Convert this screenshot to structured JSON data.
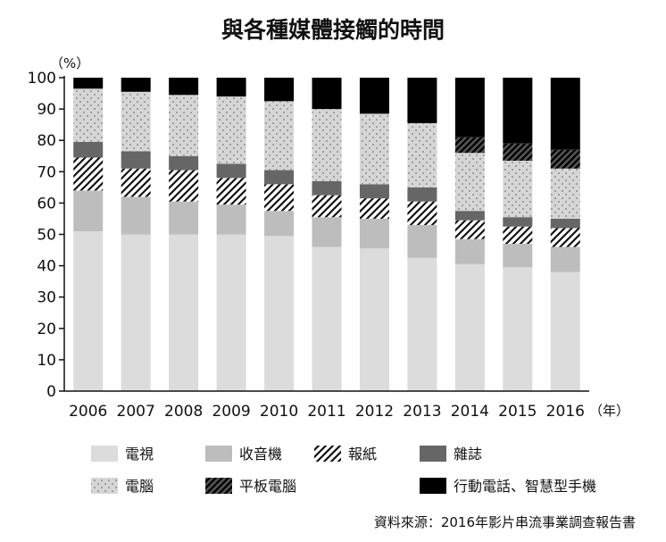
{
  "chart_data": {
    "type": "bar",
    "stacked": true,
    "normalized": true,
    "title": "與各種媒體接觸的時間",
    "y_unit": "（%）",
    "x_unit": "（年）",
    "ylim": [
      0,
      100
    ],
    "yticks": [
      0,
      10,
      20,
      30,
      40,
      50,
      60,
      70,
      80,
      90,
      100
    ],
    "grid": false,
    "legend_position": "bottom",
    "categories": [
      "2006",
      "2007",
      "2008",
      "2009",
      "2010",
      "2011",
      "2012",
      "2013",
      "2014",
      "2015",
      "2016"
    ],
    "series": [
      {
        "name": "電視",
        "key": "tv",
        "values": [
          51,
          50,
          50,
          50,
          49.5,
          46,
          45.5,
          42.5,
          40.5,
          39.5,
          38
        ]
      },
      {
        "name": "收音機",
        "key": "radio",
        "values": [
          13,
          12,
          10.5,
          9.5,
          8,
          9.5,
          9.5,
          10.5,
          8,
          7.5,
          8
        ]
      },
      {
        "name": "報紙",
        "key": "newspaper",
        "values": [
          10.5,
          9,
          10,
          8.5,
          8.5,
          7,
          6.5,
          7.5,
          6,
          5.5,
          6
        ]
      },
      {
        "name": "雜誌",
        "key": "magazine",
        "values": [
          5,
          5.5,
          4.5,
          4.5,
          4.5,
          4.5,
          4.5,
          4.5,
          3,
          3,
          3
        ]
      },
      {
        "name": "電腦",
        "key": "computer",
        "values": [
          17,
          19,
          19.5,
          21.5,
          22,
          23,
          22.5,
          20.5,
          18.5,
          18,
          16
        ]
      },
      {
        "name": "平板電腦",
        "key": "tablet",
        "values": [
          0,
          0,
          0,
          0,
          0,
          0,
          0,
          0,
          5,
          5.5,
          6
        ]
      },
      {
        "name": "行動電話、智慧型手機",
        "key": "mobile",
        "values": [
          3.5,
          4.5,
          5.5,
          6,
          7.5,
          10,
          11.5,
          14.5,
          19,
          21,
          23
        ]
      }
    ],
    "series_colors": {
      "tv": "#dcdcdc",
      "radio": "#bdbdbd",
      "newspaper": "hatch",
      "magazine": "#666666",
      "computer": "dots",
      "tablet": "hatch-dark",
      "mobile": "#000000"
    },
    "source": "資料來源：2016年影片串流事業調查報告書"
  }
}
